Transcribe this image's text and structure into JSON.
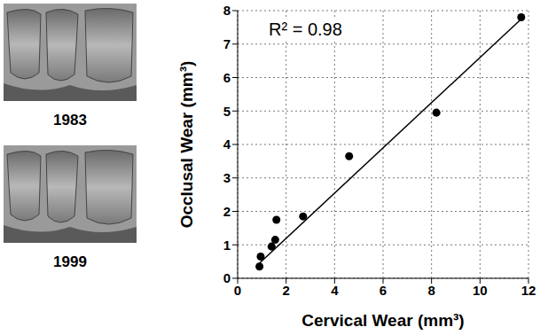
{
  "chart_data": {
    "type": "scatter",
    "x": [
      0.9,
      0.95,
      1.4,
      1.55,
      1.6,
      2.7,
      4.6,
      8.2,
      11.7
    ],
    "values": [
      0.35,
      0.65,
      0.95,
      1.15,
      1.75,
      1.85,
      3.65,
      4.95,
      7.8
    ],
    "color": "#000000",
    "marker": "circle",
    "fit_line": {
      "x": [
        0.9,
        11.7
      ],
      "values": [
        0.45,
        7.75
      ],
      "color": "#000000"
    },
    "annotations": [
      "R² = 0.98"
    ],
    "x_label": "Cervical Wear (mm³)",
    "y_label": "Occlusal Wear (mm³)",
    "xlim": [
      0,
      12
    ],
    "xticks": [
      0,
      2,
      4,
      6,
      8,
      10,
      12
    ],
    "ylim": [
      0,
      8
    ],
    "yticks": [
      0,
      1,
      2,
      3,
      4,
      5,
      6,
      7,
      8
    ],
    "grid": true
  },
  "images": [
    {
      "label": "1983"
    },
    {
      "label": "1999"
    }
  ]
}
